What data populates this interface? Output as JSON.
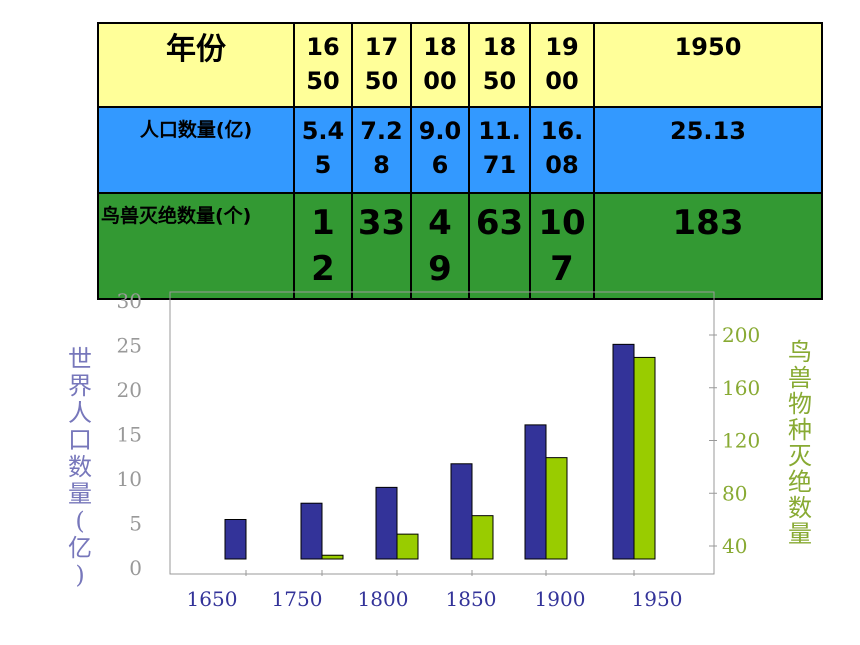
{
  "table": {
    "headers": [
      "年份",
      "16\n50",
      "17\n50",
      "18\n00",
      "18\n50",
      "19\n00",
      "1950"
    ],
    "rows": [
      {
        "label": "人口数量(亿)",
        "cells": [
          "5.4\n5",
          "7.2\n8",
          "9.0\n6",
          "11.\n71",
          "16.\n08",
          "25.13"
        ]
      },
      {
        "label": "鸟兽灭绝数量(个)",
        "cells": [
          "1\n2",
          "33",
          "4\n9",
          "63",
          "10\n7",
          "183"
        ]
      }
    ]
  },
  "colors": {
    "header_row": "#ffff99",
    "population_row": "#3399ff",
    "extinction_row": "#339933",
    "population_bar": "#333399",
    "extinction_bar": "#99cc00",
    "left_axis_text": "#7777bb",
    "right_axis_text": "#88aa33"
  },
  "chart_data": {
    "type": "bar",
    "categories": [
      "1650",
      "1750",
      "1800",
      "1850",
      "1900",
      "1950"
    ],
    "series": [
      {
        "axis": "left",
        "values": [
          5.45,
          7.28,
          9.06,
          11.71,
          16.08,
          25.13
        ]
      },
      {
        "axis": "right",
        "values": [
          12,
          33,
          49,
          63,
          107,
          183
        ]
      }
    ],
    "ylabel_left": "世界人口数量(亿)",
    "ylabel_right": "鸟兽物种灭绝数量",
    "left_ticks": [
      "0",
      "5",
      "10",
      "15",
      "20",
      "25",
      "30"
    ],
    "right_ticks": [
      "40",
      "80",
      "120",
      "160",
      "200"
    ],
    "ylim_left": [
      0,
      30
    ],
    "ylim_right": [
      0,
      220
    ],
    "grid": false
  }
}
